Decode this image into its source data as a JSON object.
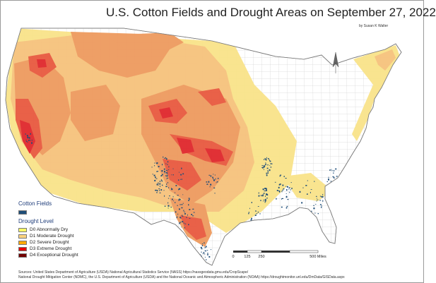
{
  "title": "U.S. Cotton Fields and Drought Areas on September 27, 2022",
  "author": "by Susan K Walter",
  "legend": {
    "cotton_heading": "Cotton Fields",
    "cotton_color": "#1f4e79",
    "drought_heading": "Drought Level",
    "levels": [
      {
        "label": "D0 Abnormally Dry",
        "color": "#ffff66"
      },
      {
        "label": "D1 Moderate Drought",
        "color": "#fcd37f"
      },
      {
        "label": "D2 Severe Drought",
        "color": "#ffaa00"
      },
      {
        "label": "D3 Extreme Drought",
        "color": "#e60000"
      },
      {
        "label": "D4 Exceptional Drought",
        "color": "#730000"
      }
    ]
  },
  "scale": {
    "ticks": [
      "0",
      "125",
      "250",
      "500 Miles"
    ]
  },
  "sources": [
    "Sources: United States Department of Agriculture (USDA) National Agricultural Statistics Service (NASS) https://nassgeodata.gmu.edu/CropScape/",
    "National Drought Mitigation Center (NDMC), the U.S. Department of Agriculture (USDA) and the National Oceanic and Atmospheric Administration (NOAA) https://droughtmonitor.unl.edu/DmData/GISData.aspx"
  ],
  "colors": {
    "d0": "#f9e38a",
    "d1": "#f6c27c",
    "d2": "#ee9a5e",
    "d3": "#e8593f",
    "d4": "#e0272c",
    "cotton": "#1f4e79",
    "land": "#ffffff",
    "lines": "#b9b9b9"
  }
}
